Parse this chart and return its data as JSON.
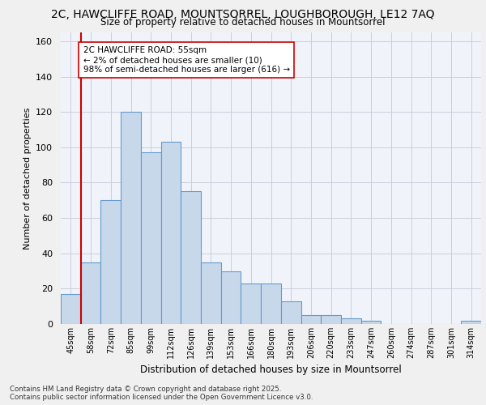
{
  "title_line1": "2C, HAWCLIFFE ROAD, MOUNTSORREL, LOUGHBOROUGH, LE12 7AQ",
  "title_line2": "Size of property relative to detached houses in Mountsorrel",
  "xlabel": "Distribution of detached houses by size in Mountsorrel",
  "ylabel": "Number of detached properties",
  "bar_labels": [
    "45sqm",
    "58sqm",
    "72sqm",
    "85sqm",
    "99sqm",
    "112sqm",
    "126sqm",
    "139sqm",
    "153sqm",
    "166sqm",
    "180sqm",
    "193sqm",
    "206sqm",
    "220sqm",
    "233sqm",
    "247sqm",
    "260sqm",
    "274sqm",
    "287sqm",
    "301sqm",
    "314sqm"
  ],
  "bar_values": [
    17,
    35,
    70,
    120,
    97,
    103,
    75,
    35,
    30,
    23,
    23,
    13,
    5,
    5,
    3,
    2,
    0,
    0,
    0,
    0,
    2
  ],
  "bar_color": "#c8d8eb",
  "bar_edge_color": "#6699cc",
  "vline_color": "#cc0000",
  "annotation_text": "2C HAWCLIFFE ROAD: 55sqm\n← 2% of detached houses are smaller (10)\n98% of semi-detached houses are larger (616) →",
  "annotation_box_color": "#ffffff",
  "annotation_box_edge": "#cc0000",
  "ylim": [
    0,
    165
  ],
  "yticks": [
    0,
    20,
    40,
    60,
    80,
    100,
    120,
    140,
    160
  ],
  "footer_line1": "Contains HM Land Registry data © Crown copyright and database right 2025.",
  "footer_line2": "Contains public sector information licensed under the Open Government Licence v3.0.",
  "bg_color": "#f0f0f0",
  "plot_bg_color": "#f0f4fa",
  "grid_color": "#ccccdd"
}
